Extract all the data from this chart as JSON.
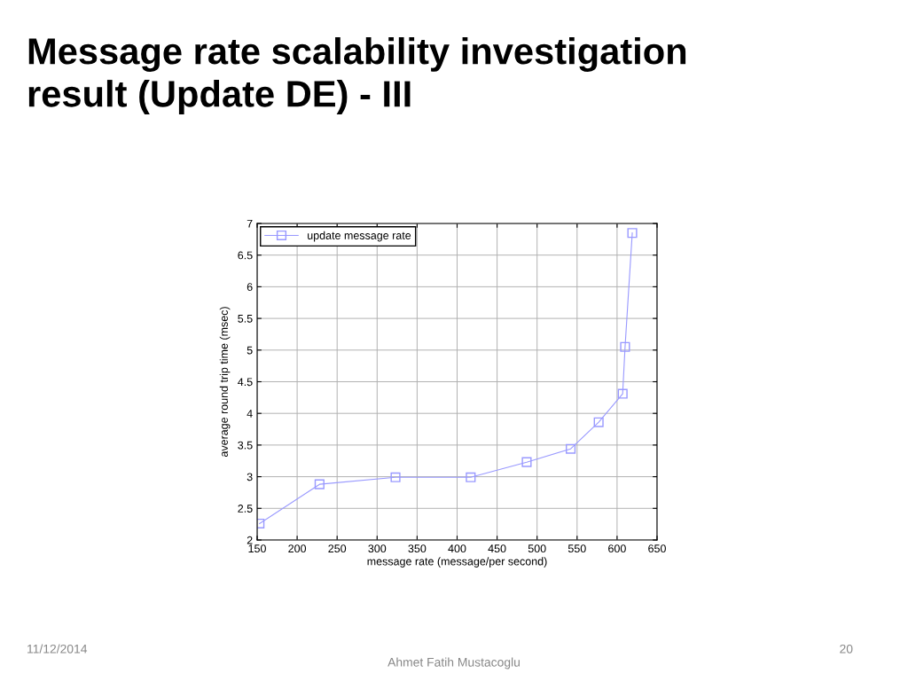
{
  "chart_data": {
    "type": "line",
    "title": "Message rate scalability investigation\nresult (Update DE) - III",
    "xlabel": "message rate (message/per second)",
    "ylabel": "average round trip time (msec)",
    "x": [
      153,
      228,
      323,
      417,
      487,
      542,
      577,
      607,
      610,
      619
    ],
    "series": [
      {
        "name": "update message rate",
        "color": "#9999ff",
        "values": [
          2.26,
          2.88,
          2.99,
          2.99,
          3.23,
          3.44,
          3.86,
          4.31,
          5.05,
          6.85
        ]
      }
    ],
    "xlim": [
      150,
      650
    ],
    "xticks": [
      150,
      200,
      250,
      300,
      350,
      400,
      450,
      500,
      550,
      600,
      650
    ],
    "ylim": [
      2,
      7
    ],
    "yticks": [
      2,
      2.5,
      3,
      3.5,
      4,
      4.5,
      5,
      5.5,
      6,
      6.5,
      7
    ],
    "grid": true,
    "legend": "top left",
    "marker": "square",
    "line_style": "solid",
    "annotations": [
      "11/12/2014",
      "Ahmet Fatih Mustacoglu",
      "20"
    ]
  }
}
